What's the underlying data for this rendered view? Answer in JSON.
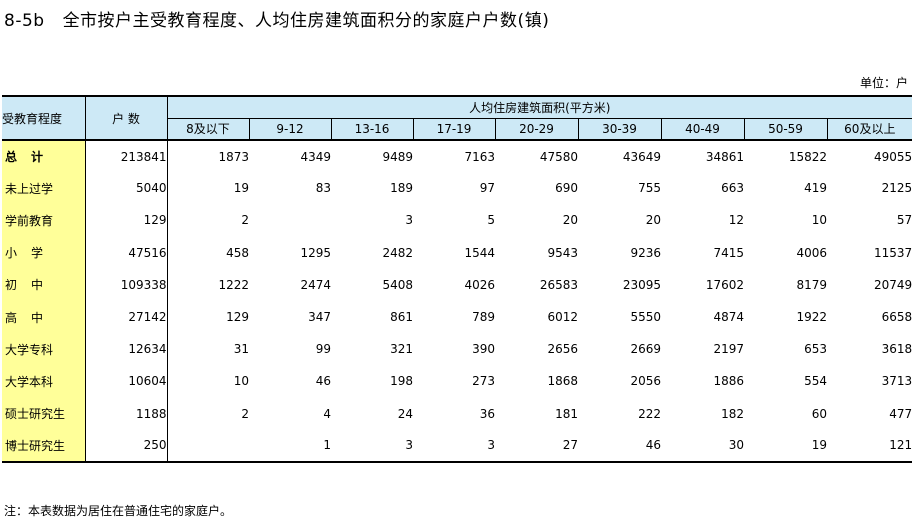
{
  "title": {
    "code": "8-5b",
    "text": "全市按户主受教育程度、人均住房建筑面积分的家庭户户数(镇)"
  },
  "unit": "单位：户",
  "table": {
    "corner_label": "受教育程度",
    "households_label": "户  数",
    "span_header": "人均住房建筑面积(平方米)",
    "columns": [
      "8及以下",
      "9-12",
      "13-16",
      "17-19",
      "20-29",
      "30-39",
      "40-49",
      "50-59",
      "60及以上"
    ],
    "rows": [
      {
        "label": "总计",
        "households": "213841",
        "values": [
          "1873",
          "4349",
          "9489",
          "7163",
          "47580",
          "43649",
          "34861",
          "15822",
          "49055"
        ]
      },
      {
        "label": "未上过学",
        "households": "5040",
        "values": [
          "19",
          "83",
          "189",
          "97",
          "690",
          "755",
          "663",
          "419",
          "2125"
        ]
      },
      {
        "label": "学前教育",
        "households": "129",
        "values": [
          "2",
          "",
          "3",
          "5",
          "20",
          "20",
          "12",
          "10",
          "57"
        ]
      },
      {
        "label": "小学",
        "households": "47516",
        "values": [
          "458",
          "1295",
          "2482",
          "1544",
          "9543",
          "9236",
          "7415",
          "4006",
          "11537"
        ]
      },
      {
        "label": "初中",
        "households": "109338",
        "values": [
          "1222",
          "2474",
          "5408",
          "4026",
          "26583",
          "23095",
          "17602",
          "8179",
          "20749"
        ]
      },
      {
        "label": "高中",
        "households": "27142",
        "values": [
          "129",
          "347",
          "861",
          "789",
          "6012",
          "5550",
          "4874",
          "1922",
          "6658"
        ]
      },
      {
        "label": "大学专科",
        "households": "12634",
        "values": [
          "31",
          "99",
          "321",
          "390",
          "2656",
          "2669",
          "2197",
          "653",
          "3618"
        ]
      },
      {
        "label": "大学本科",
        "households": "10604",
        "values": [
          "10",
          "46",
          "198",
          "273",
          "1868",
          "2056",
          "1886",
          "554",
          "3713"
        ]
      },
      {
        "label": "硕士研究生",
        "households": "1188",
        "values": [
          "2",
          "4",
          "24",
          "36",
          "181",
          "222",
          "182",
          "60",
          "477"
        ]
      },
      {
        "label": "博士研究生",
        "households": "250",
        "values": [
          "",
          "1",
          "3",
          "3",
          "27",
          "46",
          "30",
          "19",
          "121"
        ]
      }
    ]
  },
  "note": "注：本表数据为居住在普通住宅的家庭户。"
}
